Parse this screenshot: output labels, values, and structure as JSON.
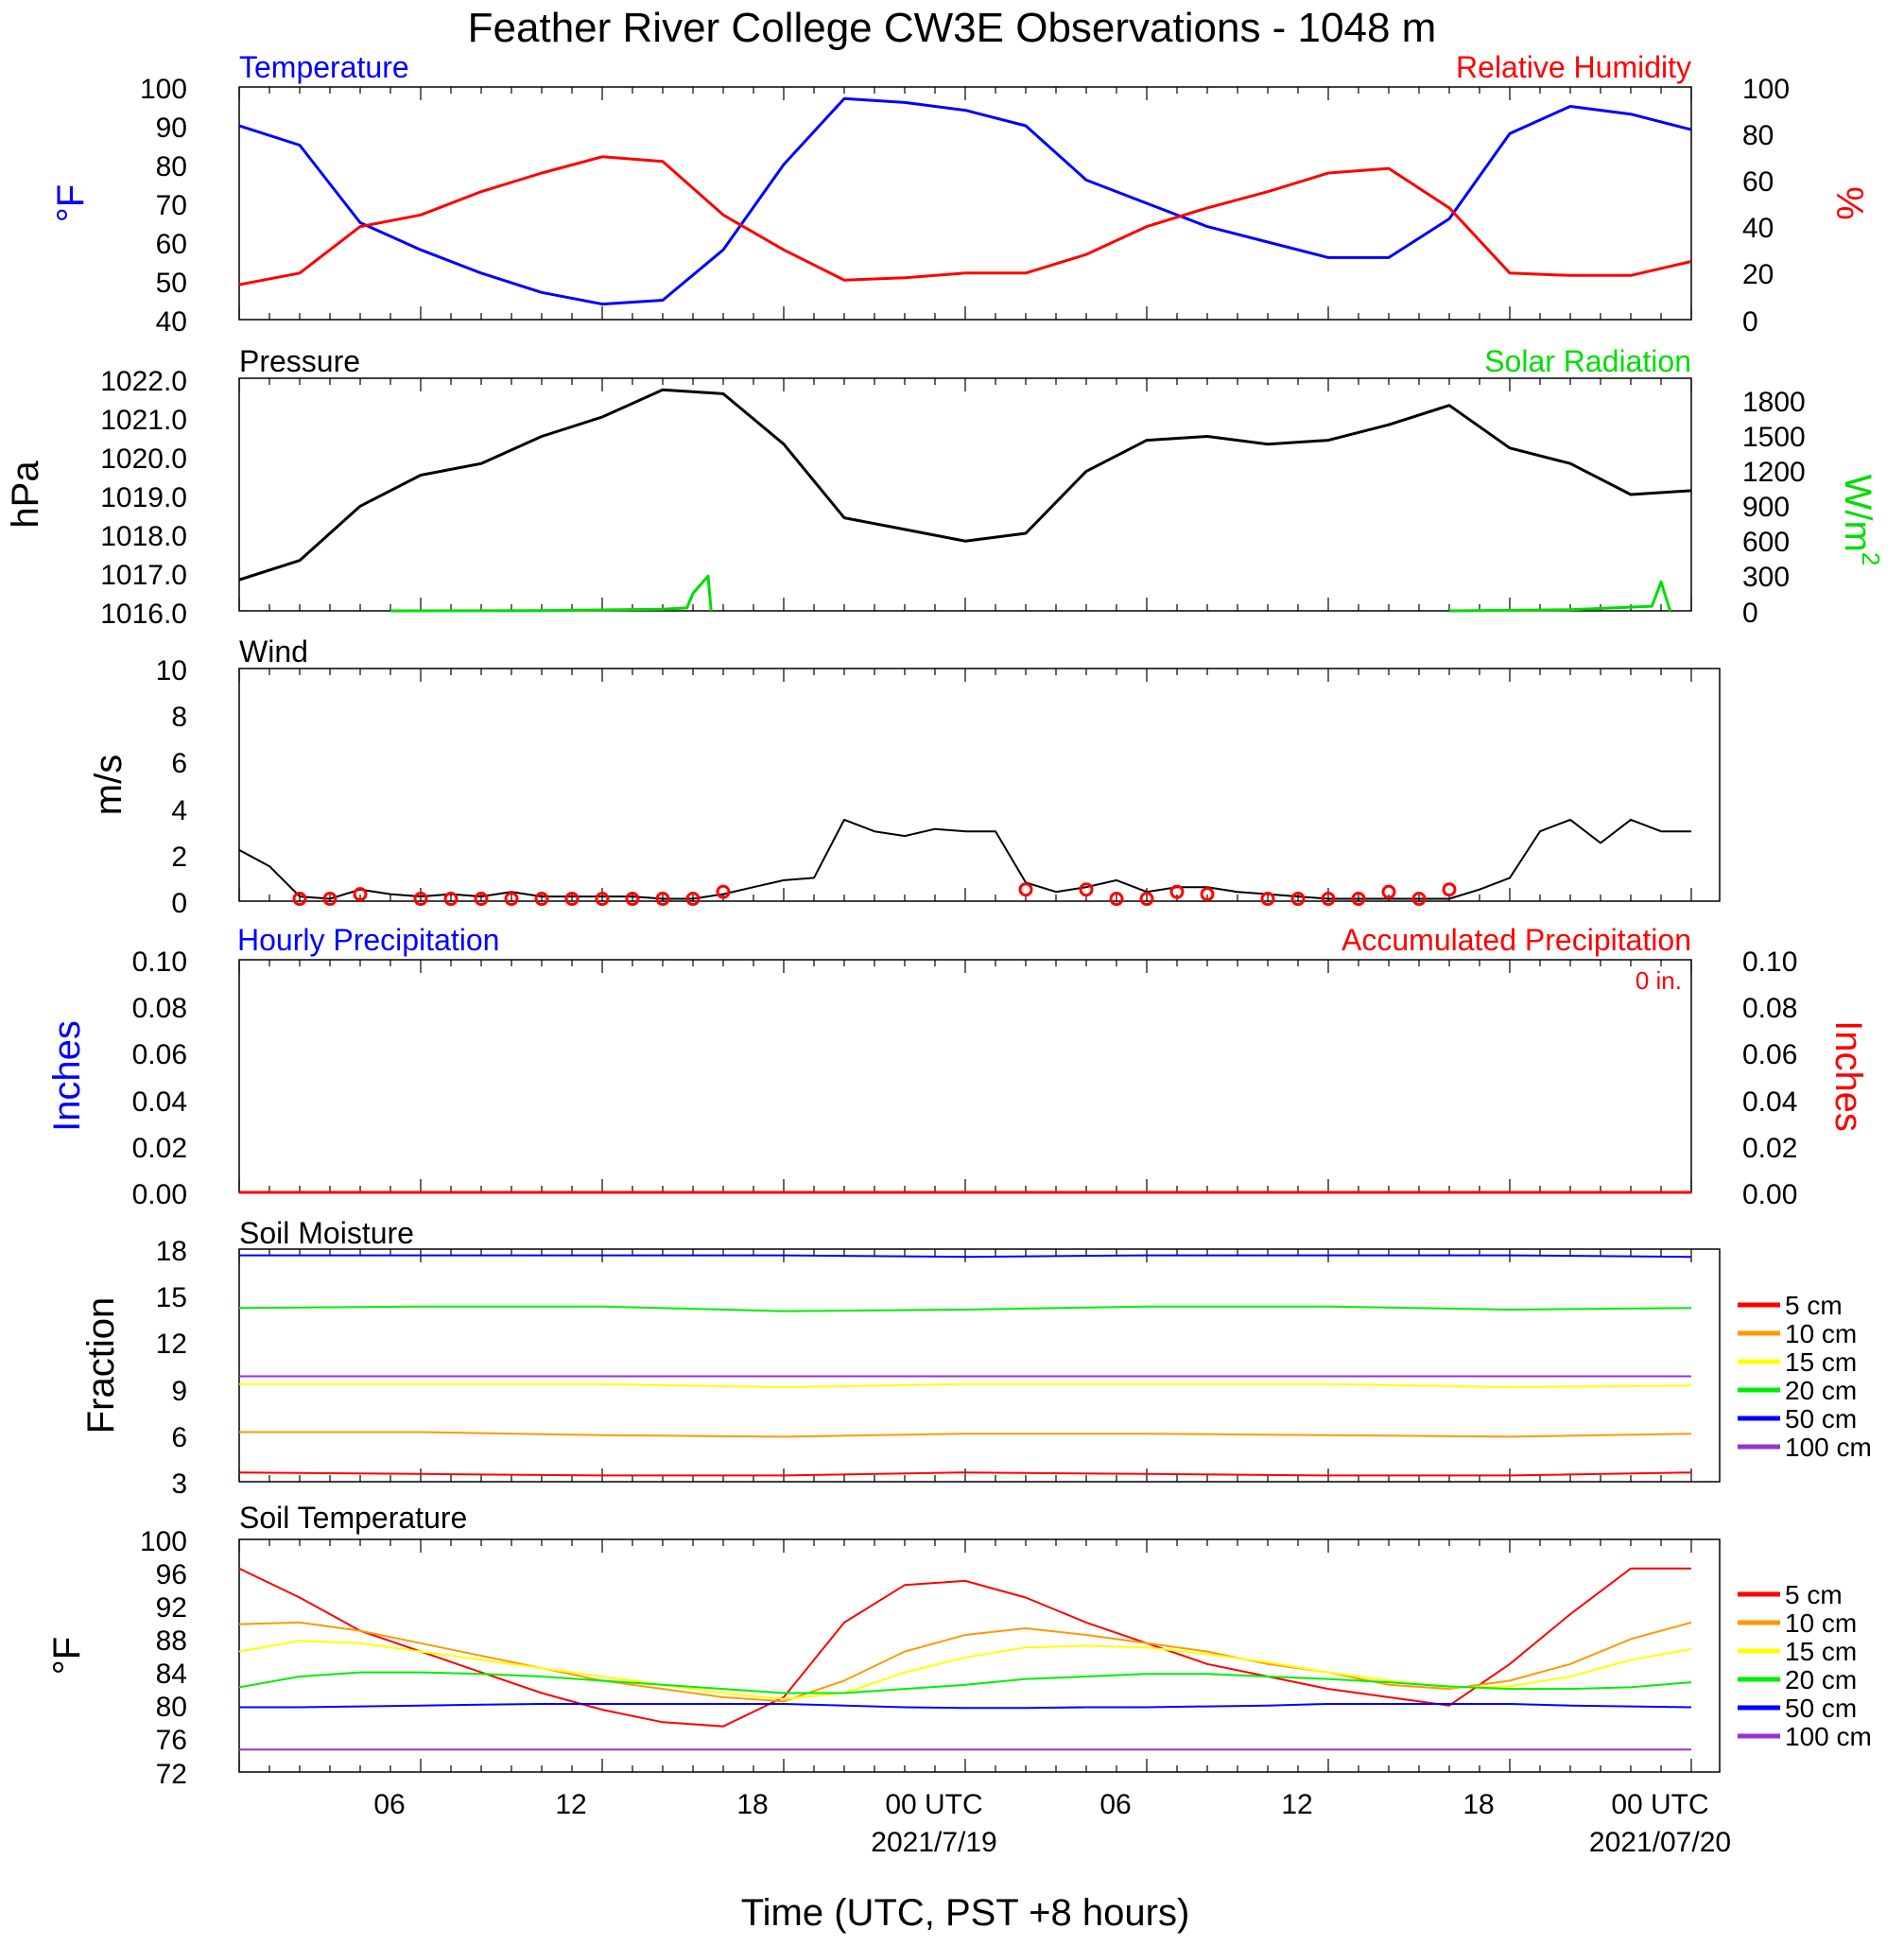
{
  "page_title": "Feather River College CW3E Observations - 1048 m",
  "x_axis": {
    "ticks": [
      "06",
      "12",
      "18",
      "00 UTC",
      "06",
      "12",
      "18",
      "00 UTC"
    ],
    "dates": [
      "2021/7/19",
      "2021/07/20"
    ],
    "title": "Time (UTC, PST +8 hours)"
  },
  "colors": {
    "temperature": "#0000ff",
    "humidity": "#ff0000",
    "pressure": "#000000",
    "solar": "#00dd00",
    "wind": "#000000",
    "wind_marks": "#ff0000",
    "precip_hourly": "#0000ff",
    "precip_accum": "#ff0000",
    "depth_5": "#ff0000",
    "depth_10": "#ff9900",
    "depth_15": "#ffff00",
    "depth_20": "#00ee00",
    "depth_50": "#0000ff",
    "depth_100": "#9933cc"
  },
  "chart_data": [
    {
      "type": "line",
      "panel": "temperature_humidity",
      "title_left": "Temperature",
      "title_right": "Relative Humidity",
      "ylabel_left": "°F",
      "ylabel_right": "%",
      "ylim_left": [
        40,
        100
      ],
      "ylim_right": [
        0,
        100
      ],
      "yticks_left": [
        "100",
        "90",
        "80",
        "70",
        "60",
        "50",
        "40"
      ],
      "yticks_right": [
        "100",
        "80",
        "60",
        "40",
        "20",
        "0"
      ],
      "x_hours": [
        0,
        2,
        4,
        6,
        8,
        10,
        12,
        14,
        16,
        18,
        20,
        22,
        24,
        26,
        28,
        30,
        32,
        34,
        36,
        38,
        40,
        42,
        44,
        46,
        48
      ],
      "series": [
        {
          "name": "Temperature",
          "axis": "left",
          "values": [
            90,
            85,
            65,
            58,
            52,
            47,
            44,
            45,
            58,
            80,
            97,
            96,
            94,
            90,
            76,
            70,
            64,
            60,
            56,
            56,
            66,
            88,
            95,
            93,
            89
          ]
        },
        {
          "name": "Relative Humidity",
          "axis": "right",
          "values": [
            15,
            20,
            40,
            45,
            55,
            63,
            70,
            68,
            45,
            30,
            17,
            18,
            20,
            20,
            28,
            40,
            48,
            55,
            63,
            65,
            48,
            20,
            19,
            19,
            25
          ]
        }
      ]
    },
    {
      "type": "line",
      "panel": "pressure_solar",
      "title_left": "Pressure",
      "title_right": "Solar Radiation",
      "ylabel_left": "hPa",
      "ylabel_right": "W/m",
      "ylabel_right_sup": "2",
      "ylim_left": [
        1016.0,
        1022.0
      ],
      "ylim_right": [
        0,
        2000
      ],
      "yticks_left": [
        "1022.0",
        "1021.0",
        "1020.0",
        "1019.0",
        "1018.0",
        "1017.0",
        "1016.0"
      ],
      "yticks_right": [
        "1800",
        "1500",
        "1200",
        "900",
        "600",
        "300",
        "0"
      ],
      "x_hours": [
        0,
        2,
        4,
        6,
        8,
        10,
        12,
        14,
        16,
        18,
        20,
        22,
        24,
        26,
        28,
        30,
        32,
        34,
        36,
        38,
        40,
        42,
        44,
        46,
        48
      ],
      "series": [
        {
          "name": "Pressure",
          "axis": "left",
          "values": [
            1016.8,
            1017.3,
            1018.7,
            1019.5,
            1019.8,
            1020.5,
            1021.0,
            1021.7,
            1021.6,
            1020.3,
            1018.4,
            1018.1,
            1017.8,
            1018.0,
            1019.6,
            1020.4,
            1020.5,
            1020.3,
            1020.4,
            1020.8,
            1021.3,
            1020.2,
            1019.8,
            1019.0,
            1019.1
          ]
        },
        {
          "name": "Solar Radiation",
          "axis": "right",
          "x_hours": [
            5,
            10,
            14,
            14.8,
            15.0,
            15.5,
            15.6,
            40,
            44,
            46.7,
            47.0,
            47.3
          ],
          "values": [
            0,
            2,
            15,
            25,
            150,
            300,
            0,
            0,
            10,
            40,
            250,
            0
          ]
        }
      ]
    },
    {
      "type": "line",
      "panel": "wind",
      "title_left": "Wind",
      "ylabel_left": "m/s",
      "ylim_left": [
        0,
        10
      ],
      "yticks_left": [
        "10",
        "8",
        "6",
        "4",
        "2",
        "0"
      ],
      "x_hours": [
        0,
        1,
        2,
        3,
        4,
        5,
        6,
        7,
        8,
        9,
        10,
        11,
        12,
        13,
        14,
        15,
        16,
        17,
        18,
        19,
        20,
        21,
        22,
        23,
        24,
        25,
        26,
        27,
        28,
        29,
        30,
        31,
        32,
        33,
        34,
        35,
        36,
        37,
        38,
        39,
        40,
        41,
        42,
        43,
        44,
        45,
        46,
        47,
        48
      ],
      "series": [
        {
          "name": "Wind Speed",
          "values": [
            2.2,
            1.5,
            0.2,
            0.1,
            0.5,
            0.3,
            0.2,
            0.3,
            0.2,
            0.4,
            0.2,
            0.2,
            0.2,
            0.2,
            0.1,
            0.1,
            0.3,
            0.6,
            0.9,
            1.0,
            3.5,
            3.0,
            2.8,
            3.1,
            3.0,
            3.0,
            0.8,
            0.4,
            0.6,
            0.9,
            0.4,
            0.6,
            0.6,
            0.4,
            0.3,
            0.2,
            0.1,
            0.1,
            0.1,
            0.1,
            0.1,
            0.5,
            1.0,
            3.0,
            3.5,
            2.5,
            3.5,
            3.0,
            3.0
          ]
        }
      ],
      "barb_hours": [
        2,
        3,
        4,
        6,
        7,
        8,
        9,
        10,
        11,
        12,
        13,
        14,
        15,
        16,
        26,
        28,
        29,
        30,
        31,
        32,
        34,
        35,
        36,
        37,
        38,
        39,
        40
      ],
      "barb_speeds": [
        0.1,
        0.1,
        0.3,
        0.1,
        0.1,
        0.1,
        0.1,
        0.1,
        0.1,
        0.1,
        0.1,
        0.1,
        0.1,
        0.4,
        0.5,
        0.5,
        0.1,
        0.1,
        0.4,
        0.3,
        0.1,
        0.1,
        0.1,
        0.1,
        0.4,
        0.1,
        0.5
      ]
    },
    {
      "type": "line",
      "panel": "precipitation",
      "title_left": "Hourly Precipitation",
      "title_right": "Accumulated Precipitation",
      "total_label": "0 in.",
      "ylabel_left": "Inches",
      "ylabel_right": "Inches",
      "ylim_left": [
        0,
        0.1
      ],
      "ylim_right": [
        0,
        0.1
      ],
      "yticks_left": [
        "0.10",
        "0.08",
        "0.06",
        "0.04",
        "0.02",
        "0.00"
      ],
      "yticks_right": [
        "0.10",
        "0.08",
        "0.06",
        "0.04",
        "0.02",
        "0.00"
      ],
      "x_hours": [
        0,
        48
      ],
      "series": [
        {
          "name": "Hourly Precipitation",
          "values": [
            0,
            0
          ]
        },
        {
          "name": "Accumulated Precipitation",
          "values": [
            0,
            0
          ]
        }
      ]
    },
    {
      "type": "line",
      "panel": "soil_moisture",
      "title_left": "Soil Moisture",
      "ylabel_left": "Fraction",
      "ylim_left": [
        3,
        18
      ],
      "yticks_left": [
        "18",
        "15",
        "12",
        "9",
        "6",
        "3"
      ],
      "x_hours": [
        0,
        6,
        12,
        18,
        24,
        30,
        36,
        42,
        48
      ],
      "series": [
        {
          "name": "5 cm",
          "values": [
            3.6,
            3.5,
            3.4,
            3.4,
            3.6,
            3.5,
            3.4,
            3.4,
            3.6
          ]
        },
        {
          "name": "10 cm",
          "values": [
            6.2,
            6.2,
            6.0,
            5.9,
            6.1,
            6.1,
            6.0,
            5.9,
            6.1
          ]
        },
        {
          "name": "15 cm",
          "values": [
            9.3,
            9.3,
            9.3,
            9.1,
            9.3,
            9.3,
            9.3,
            9.1,
            9.2
          ]
        },
        {
          "name": "20 cm",
          "values": [
            14.2,
            14.3,
            14.3,
            14.0,
            14.1,
            14.3,
            14.3,
            14.1,
            14.2
          ]
        },
        {
          "name": "50 cm",
          "values": [
            17.6,
            17.6,
            17.6,
            17.6,
            17.5,
            17.6,
            17.6,
            17.6,
            17.5
          ]
        },
        {
          "name": "100 cm",
          "values": [
            9.8,
            9.8,
            9.8,
            9.8,
            9.8,
            9.8,
            9.8,
            9.8,
            9.8
          ]
        }
      ]
    },
    {
      "type": "line",
      "panel": "soil_temperature",
      "title_left": "Soil Temperature",
      "ylabel_left": "°F",
      "ylim_left": [
        72,
        100
      ],
      "yticks_left": [
        "100",
        "96",
        "92",
        "88",
        "84",
        "80",
        "76",
        "72"
      ],
      "x_hours": [
        0,
        2,
        4,
        6,
        8,
        10,
        12,
        14,
        16,
        18,
        20,
        22,
        24,
        26,
        28,
        30,
        32,
        34,
        36,
        38,
        40,
        42,
        44,
        46,
        48
      ],
      "series": [
        {
          "name": "5 cm",
          "values": [
            96.5,
            93,
            89,
            86.5,
            84,
            81.5,
            79.5,
            78,
            77.5,
            81,
            90,
            94.5,
            95,
            93,
            90,
            87.5,
            85,
            83.5,
            82,
            81,
            80,
            85,
            91,
            96.5,
            96.5
          ]
        },
        {
          "name": "10 cm",
          "values": [
            89.8,
            90,
            89,
            87.5,
            86,
            84.5,
            83,
            82,
            81,
            80.5,
            83,
            86.5,
            88.5,
            89.3,
            88.5,
            87.5,
            86.5,
            85,
            84,
            82.5,
            82,
            83,
            85,
            88,
            90
          ]
        },
        {
          "name": "15 cm",
          "values": [
            86.5,
            87.8,
            87.5,
            86.5,
            85.5,
            84.5,
            83.5,
            82.5,
            81.5,
            80.8,
            81.5,
            84,
            85.8,
            87,
            87.2,
            87,
            86.2,
            85.2,
            84,
            83,
            82.2,
            82.3,
            83.5,
            85.5,
            86.8
          ]
        },
        {
          "name": "20 cm",
          "values": [
            82.2,
            83.5,
            84,
            84,
            83.8,
            83.5,
            83,
            82.5,
            82,
            81.5,
            81.5,
            82,
            82.5,
            83.2,
            83.5,
            83.8,
            83.8,
            83.5,
            83.2,
            82.8,
            82.3,
            82,
            82,
            82.2,
            82.8
          ]
        },
        {
          "name": "50 cm",
          "values": [
            79.8,
            79.8,
            79.9,
            80,
            80.1,
            80.2,
            80.2,
            80.2,
            80.2,
            80.2,
            80,
            79.8,
            79.7,
            79.7,
            79.8,
            79.8,
            79.9,
            80,
            80.2,
            80.2,
            80.2,
            80.2,
            80,
            79.9,
            79.8
          ]
        },
        {
          "name": "100 cm",
          "values": [
            74.7,
            74.7,
            74.7,
            74.7,
            74.7,
            74.7,
            74.7,
            74.7,
            74.7,
            74.7,
            74.7,
            74.7,
            74.7,
            74.7,
            74.7,
            74.7,
            74.7,
            74.7,
            74.7,
            74.7,
            74.7,
            74.7,
            74.7,
            74.7,
            74.7
          ]
        }
      ]
    }
  ],
  "soil_legend": [
    "5 cm",
    "10 cm",
    "15 cm",
    "20 cm",
    "50 cm",
    "100 cm"
  ]
}
